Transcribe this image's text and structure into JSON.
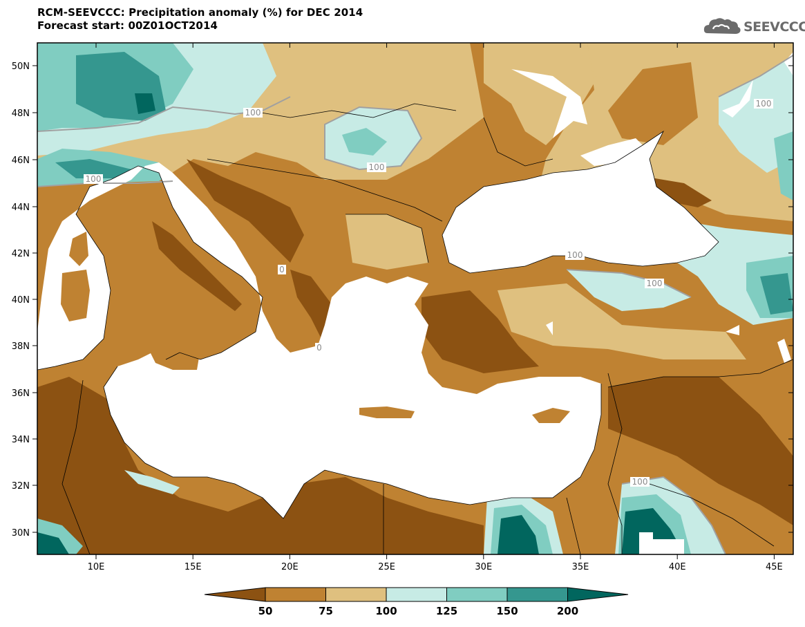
{
  "title": {
    "line1": "RCM-SEEVCCC: Precipitation anomaly (%) for DEC 2014",
    "line2": "Forecast start: 00Z01OCT2014"
  },
  "logo": {
    "text": "SEEVCCC",
    "icon": "cloud-logo-icon"
  },
  "colors": {
    "very_dry": "#8c5212",
    "dry": "#bf8232",
    "slightly_dry": "#dfc07f",
    "slightly_wet": "#c7ebe5",
    "wet": "#80cdc1",
    "very_wet": "#35978f",
    "extreme_wet": "#01665e",
    "sea": "#ffffff",
    "contour_line": "#a0a0a0"
  },
  "axes": {
    "lat_labels": [
      "50N",
      "48N",
      "46N",
      "44N",
      "42N",
      "40N",
      "38N",
      "36N",
      "34N",
      "32N",
      "30N"
    ],
    "lon_labels": [
      "10E",
      "15E",
      "20E",
      "25E",
      "30E",
      "35E",
      "40E",
      "45E"
    ]
  },
  "contour_labels": [
    "100",
    "100",
    "100",
    "100",
    "100",
    "100",
    "100",
    "0",
    "0"
  ],
  "colorbar": {
    "labels": [
      "50",
      "75",
      "100",
      "125",
      "150",
      "200"
    ]
  }
}
